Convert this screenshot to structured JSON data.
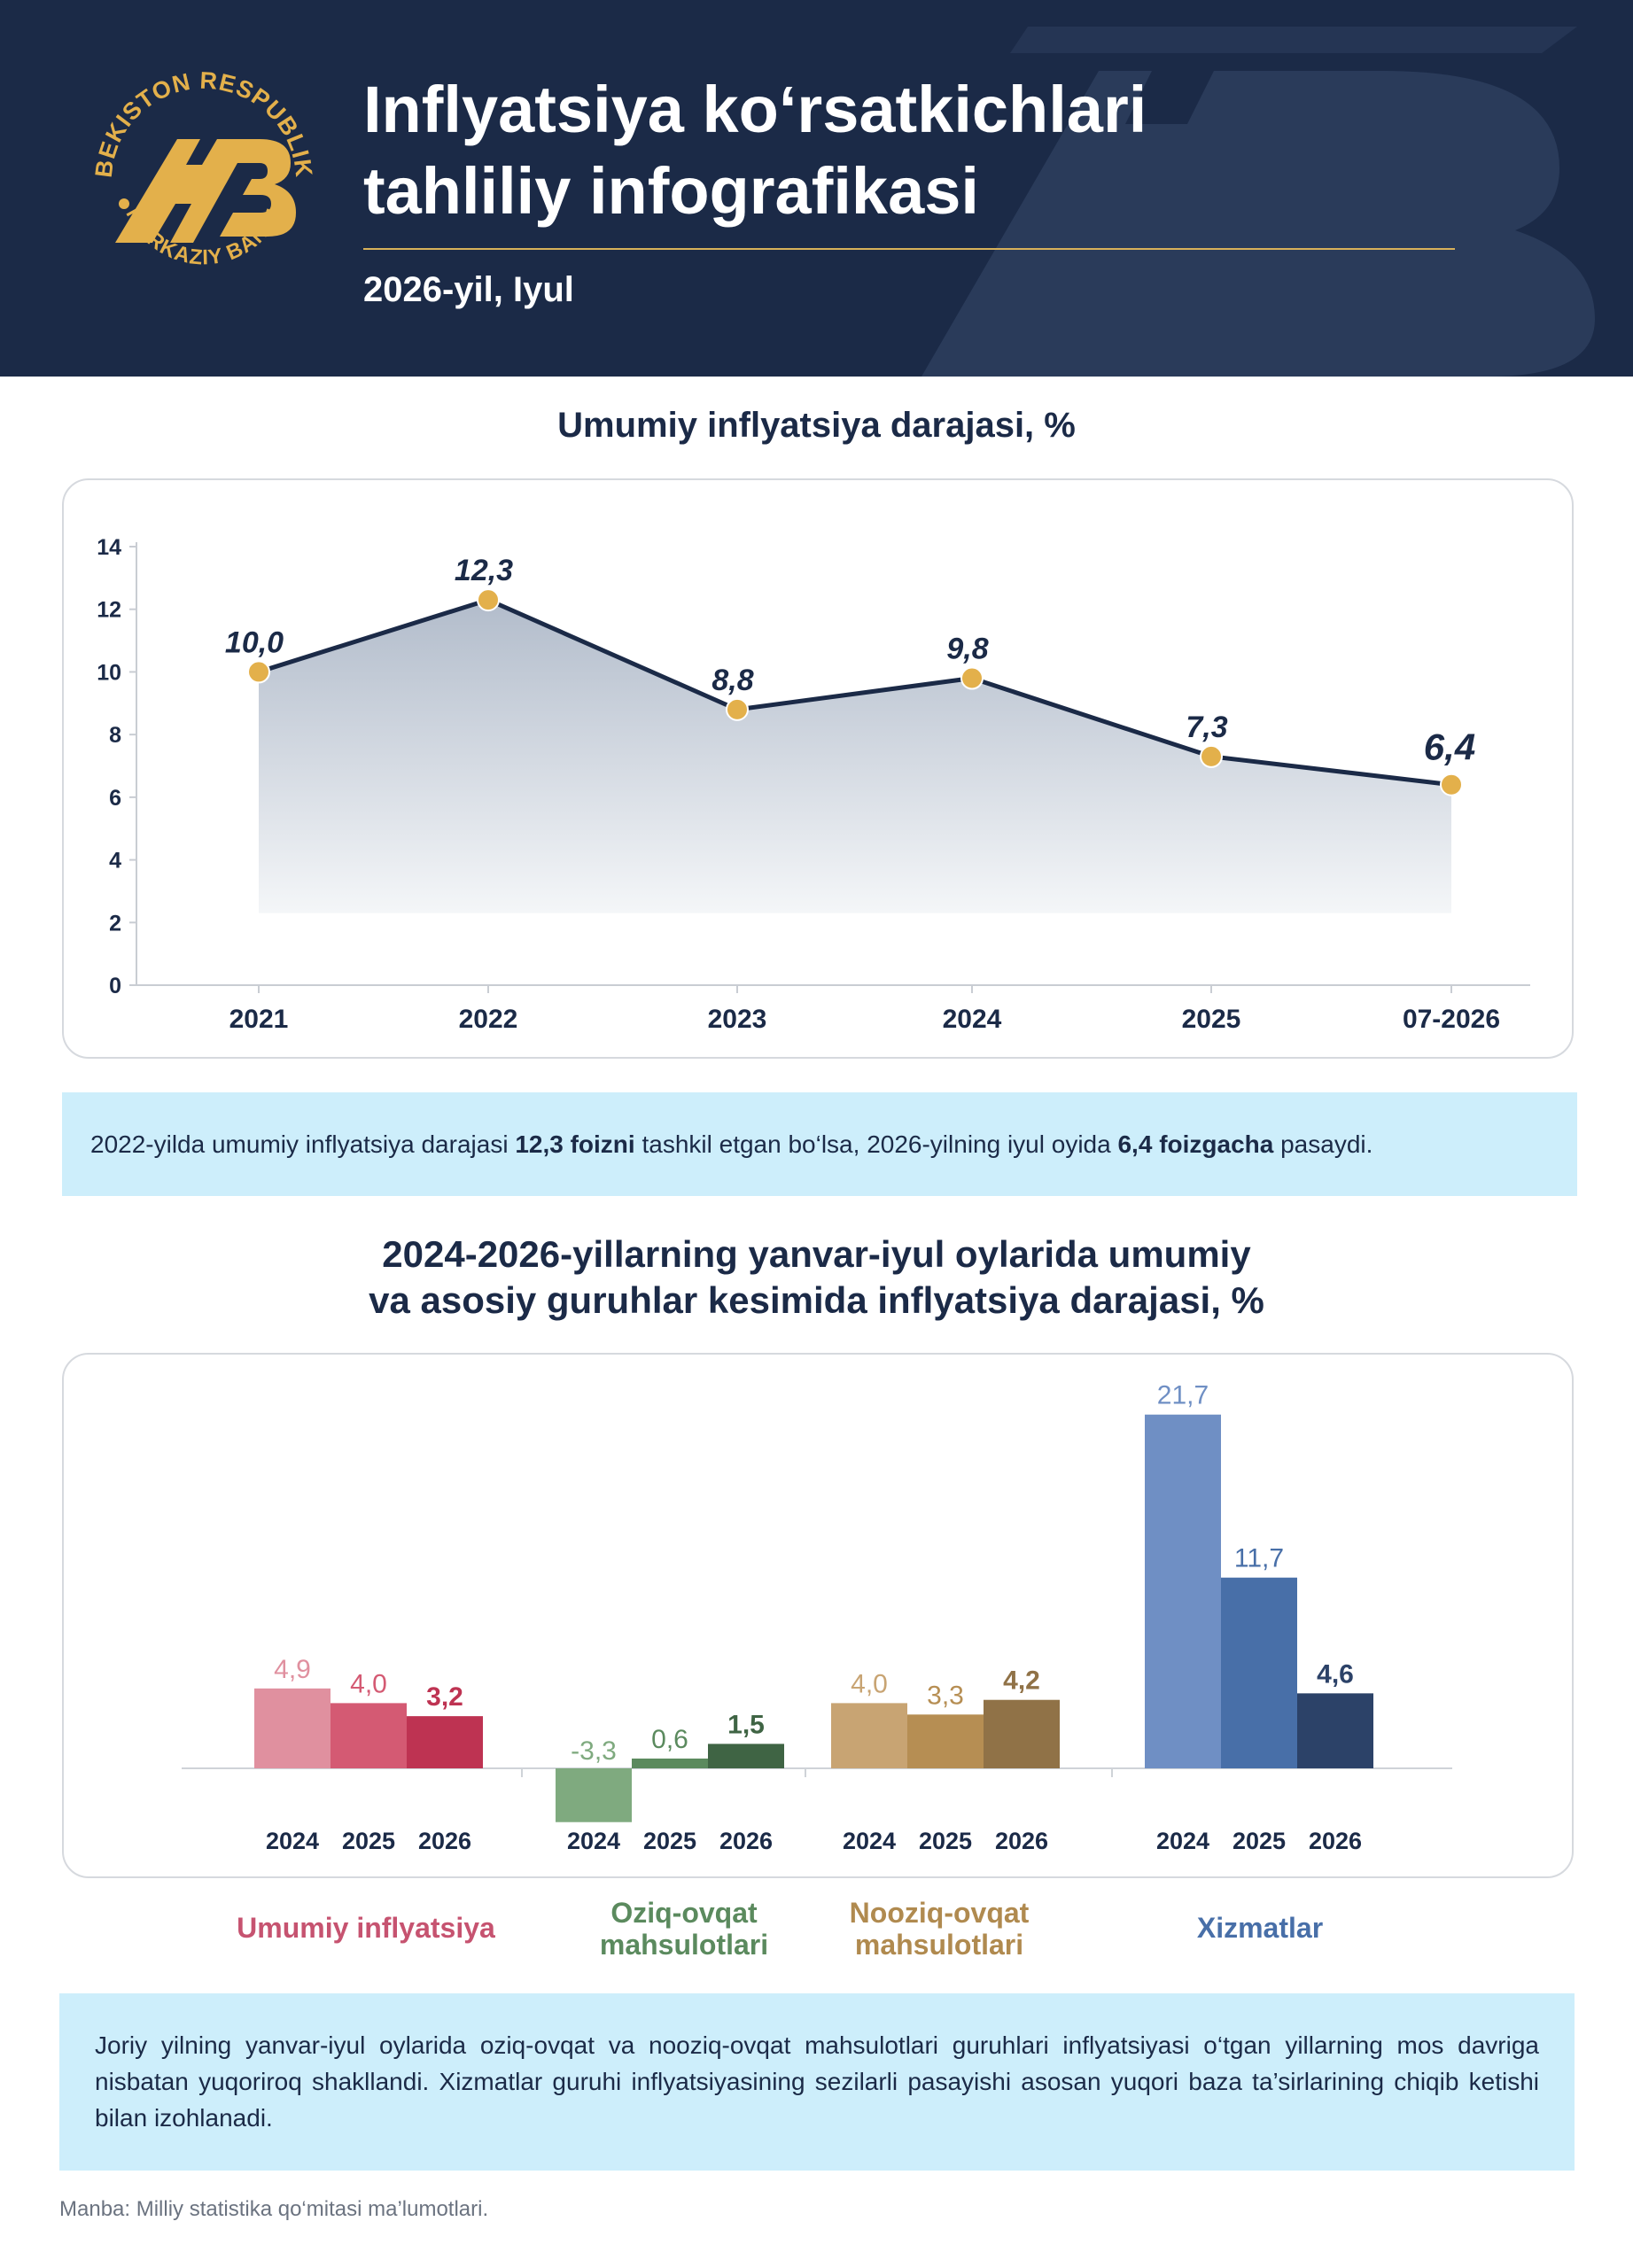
{
  "header": {
    "title_line1": "Inflyatsiya ko‘rsatkichlari",
    "title_line2": "tahliliy infografikasi",
    "period": "2026-yil, Iyul",
    "logo_ring_top": "O‘ZBEKISTON RESPUBLIKASI",
    "logo_ring_bottom": "MARKAZIY BANKI",
    "logo_mark": "MB"
  },
  "colors": {
    "navy": "#1b2a47",
    "gold": "#e3b04b",
    "note_bg": "#cdeefb",
    "umumiy": [
      "#e0909f",
      "#d45a73",
      "#be3352"
    ],
    "oziq": [
      "#7faa7f",
      "#5b8a5e",
      "#3f6444"
    ],
    "nooziq": [
      "#c8a473",
      "#b68e53",
      "#907247"
    ],
    "xizmat": [
      "#6f8fc4",
      "#486fa8",
      "#2c4268"
    ],
    "cat_label": [
      "#c65370",
      "#5b8a5e",
      "#b08a4f",
      "#486fa8"
    ]
  },
  "chart_data": [
    {
      "type": "line",
      "title": "Umumiy inflyatsiya darajasi, %",
      "x": [
        "2021",
        "2022",
        "2023",
        "2024",
        "2025",
        "07-2026"
      ],
      "y": [
        10.0,
        12.3,
        8.8,
        9.8,
        7.3,
        6.4
      ],
      "data_labels": [
        "10,0",
        "12,3",
        "8,8",
        "9,8",
        "7,3",
        "6,4"
      ],
      "ylim": [
        0,
        14
      ],
      "yticks": [
        0,
        2,
        4,
        6,
        8,
        10,
        12,
        14
      ],
      "grid": false
    },
    {
      "type": "bar",
      "title_line1": "2024-2026-yillarning yanvar-iyul oylarida umumiy",
      "title_line2": "va asosiy guruhlar kesimida inflyatsiya darajasi, %",
      "groups": [
        {
          "name": "Umumiy inflyatsiya",
          "years": [
            "2024",
            "2025",
            "2026"
          ],
          "values": [
            4.9,
            4.0,
            3.2
          ],
          "labels": [
            "4,9",
            "4,0",
            "3,2"
          ]
        },
        {
          "name_line1": "Oziq-ovqat",
          "name_line2": "mahsulotlari",
          "years": [
            "2024",
            "2025",
            "2026"
          ],
          "values": [
            -3.3,
            0.6,
            1.5
          ],
          "labels": [
            "-3,3",
            "0,6",
            "1,5"
          ]
        },
        {
          "name_line1": "Nooziq-ovqat",
          "name_line2": "mahsulotlari",
          "years": [
            "2024",
            "2025",
            "2026"
          ],
          "values": [
            4.0,
            3.3,
            4.2
          ],
          "labels": [
            "4,0",
            "3,3",
            "4,2"
          ]
        },
        {
          "name": "Xizmatlar",
          "years": [
            "2024",
            "2025",
            "2026"
          ],
          "values": [
            21.7,
            11.7,
            4.6
          ],
          "labels": [
            "21,7",
            "11,7",
            "4,6"
          ]
        }
      ]
    }
  ],
  "note1": {
    "t1": "2022-yilda umumiy inflyatsiya darajasi ",
    "b1": "12,3 foizni",
    "t2": " tashkil etgan bo‘lsa, 2026-yilning iyul oyida ",
    "b2": "6,4 foizgacha",
    "t3": " pasaydi."
  },
  "note2": "Joriy yilning yanvar-iyul oylarida oziq-ovqat va nooziq-ovqat mahsulotlari guruhlari inflyatsiyasi o‘tgan yillarning mos davriga nisbatan yuqoriroq shakllandi. Xizmatlar guruhi inflyatsiyasining sezilarli pasayishi asosan yuqori baza ta’sirlarining chiqib ketishi bilan izohlanadi.",
  "source": "Manba: Milliy statistika qo‘mitasi ma’lumotlari."
}
